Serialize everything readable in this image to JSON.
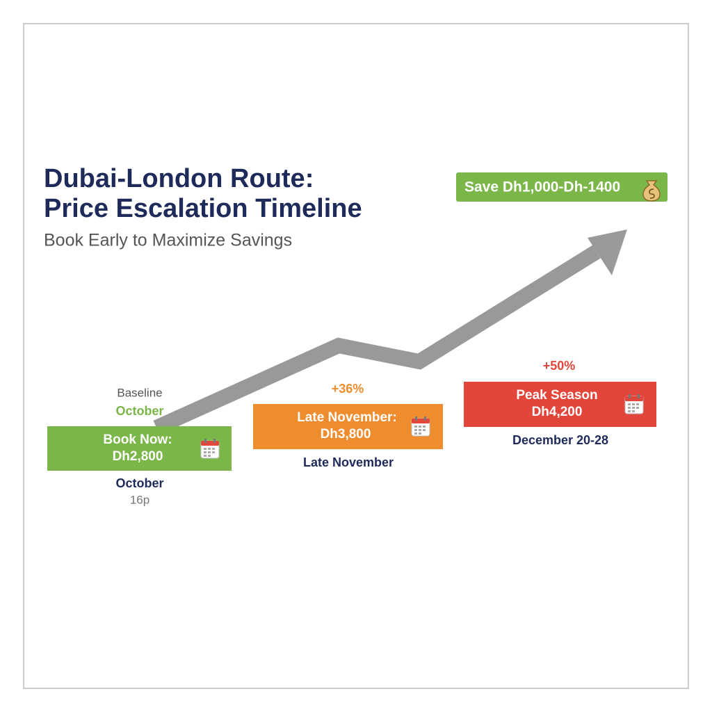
{
  "header": {
    "title_lines": [
      "Dubai-London Route:",
      "Price Escalation Timeline"
    ],
    "subtitle": "Book Early to Maximize Savings"
  },
  "badge": "Save Dh1,000-Dh-1400",
  "stages": [
    {
      "above": [
        "Baseline",
        "October"
      ],
      "box": [
        "Book Now:",
        "Dh2,800"
      ],
      "below": [
        "October",
        "16p"
      ]
    },
    {
      "above": [
        "+36%"
      ],
      "box": [
        "Late November:",
        "Dh3,800"
      ],
      "below": [
        "Late November"
      ]
    },
    {
      "above": [
        "+50%"
      ],
      "box": [
        "Peak Season",
        "Dh4,200"
      ],
      "below": [
        "December 20-28"
      ]
    }
  ]
}
